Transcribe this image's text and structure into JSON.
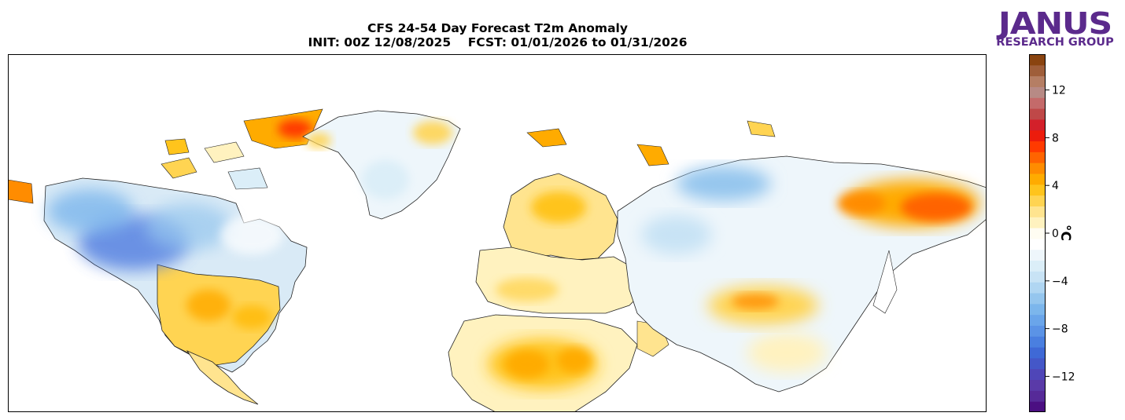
{
  "title": {
    "line1": "CFS 24-54 Day Forecast T2m Anomaly",
    "line2": "INIT: 00Z 12/08/2025    FCST: 01/01/2026 to 01/31/2026"
  },
  "logo": {
    "name": "JANUS",
    "tagline": "RESEARCH GROUP",
    "color": "#5b2a8c"
  },
  "colorbar": {
    "unit": "°C",
    "min": -15,
    "max": 15,
    "ticks": [
      "12",
      "8",
      "4",
      "0",
      "−4",
      "−8",
      "−12"
    ],
    "tick_values": [
      12,
      8,
      4,
      0,
      -4,
      -8,
      -12
    ],
    "colors": [
      "#4b0f82",
      "#562a98",
      "#5a3aa8",
      "#4f46b8",
      "#4457c8",
      "#3f69d6",
      "#4a7fe0",
      "#5b93e6",
      "#6aa5ea",
      "#7cb6ec",
      "#95c6ee",
      "#b0d6f2",
      "#c8e3f5",
      "#dbeef8",
      "#eef6fb",
      "#ffffff",
      "#fffdf2",
      "#fff2bf",
      "#ffe48f",
      "#ffd452",
      "#ffc41c",
      "#ffab00",
      "#ff8c00",
      "#ff6400",
      "#ff3a00",
      "#ec1c0c",
      "#d3202a",
      "#bf4848",
      "#c46a6a",
      "#b78a85",
      "#b57e64",
      "#9f5e3a",
      "#8a4410"
    ]
  },
  "map": {
    "description_colors": {
      "ocean": "#ffffff",
      "coast": "#000000"
    }
  }
}
